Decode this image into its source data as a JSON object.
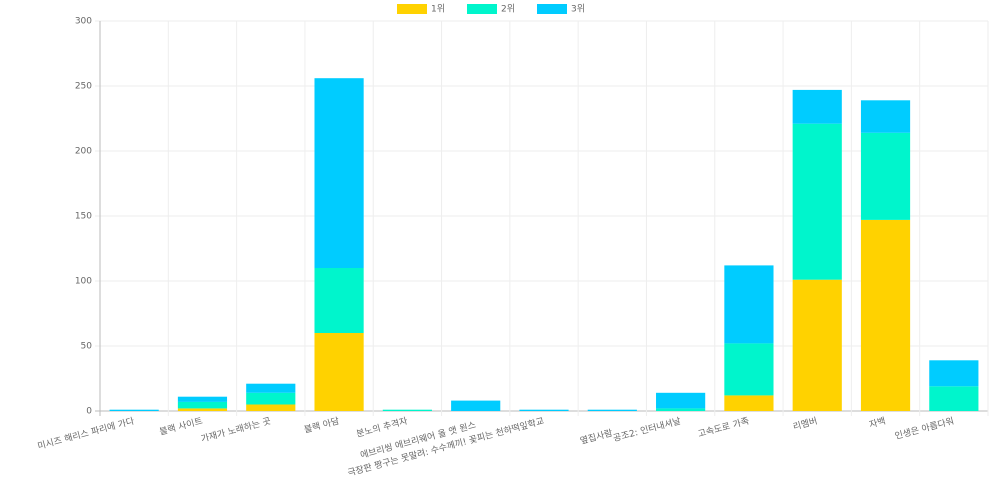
{
  "chart_data": {
    "type": "stacked-bar",
    "categories": [
      "미시즈 해리스 파리에 가다",
      "블랙 사이트",
      "가재가 노래하는 곳",
      "블랙 아담",
      "분노의 추격자",
      "에브리씽 에브리웨어 올 앳 원스",
      "극장판 짱구는 못말려: 수수께끼! 꽃피는 천하떡잎학교",
      "옆집사람",
      "공조2: 인터내셔날",
      "고속도로 가족",
      "리멤버",
      "자백",
      "인생은 아름다워"
    ],
    "series": [
      {
        "name": "1위",
        "color": "#ffd200",
        "values": [
          0,
          2,
          5,
          60,
          0,
          0,
          0,
          0,
          0,
          12,
          101,
          147,
          0
        ]
      },
      {
        "name": "2위",
        "color": "#00f5cc",
        "values": [
          0,
          5,
          9,
          50,
          1,
          0,
          0,
          0,
          2,
          40,
          120,
          67,
          19
        ]
      },
      {
        "name": "3위",
        "color": "#00ccff",
        "values": [
          1,
          4,
          7,
          146,
          0,
          8,
          1,
          1,
          12,
          60,
          26,
          25,
          20
        ]
      }
    ],
    "ylim": [
      0,
      300
    ],
    "yticks": [
      0,
      50,
      100,
      150,
      200,
      250,
      300
    ],
    "grid": true,
    "legend": "top"
  }
}
